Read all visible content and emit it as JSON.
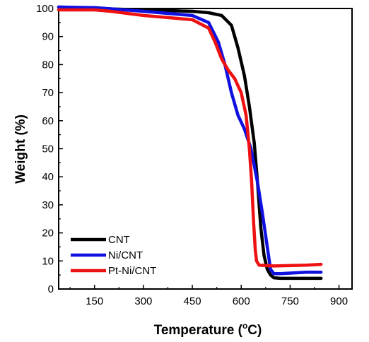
{
  "chart_data": {
    "type": "line",
    "title": "",
    "xlabel": "Temperature (°C)",
    "xlabel_parts": {
      "main": "Temperature (",
      "sup": "o",
      "unit": "C)"
    },
    "ylabel": "Weight (%)",
    "xlim": [
      40,
      940
    ],
    "ylim": [
      0,
      100
    ],
    "x_ticks": [
      150,
      300,
      450,
      600,
      750,
      900
    ],
    "y_ticks": [
      0,
      10,
      20,
      30,
      40,
      50,
      60,
      70,
      80,
      90,
      100
    ],
    "grid": false,
    "legend_position": "bottom-left",
    "series": [
      {
        "name": "CNT",
        "color": "#000000",
        "points": [
          [
            40,
            100.5
          ],
          [
            150,
            100
          ],
          [
            300,
            99.5
          ],
          [
            450,
            99
          ],
          [
            500,
            98.5
          ],
          [
            540,
            97.5
          ],
          [
            570,
            94
          ],
          [
            590,
            86
          ],
          [
            610,
            76
          ],
          [
            625,
            65
          ],
          [
            640,
            52
          ],
          [
            650,
            38
          ],
          [
            660,
            22
          ],
          [
            670,
            12
          ],
          [
            680,
            7
          ],
          [
            690,
            5
          ],
          [
            700,
            4
          ],
          [
            720,
            3.8
          ],
          [
            800,
            3.8
          ],
          [
            845,
            3.8
          ]
        ]
      },
      {
        "name": "Ni/CNT",
        "color": "#1010e0",
        "points": [
          [
            40,
            100.5
          ],
          [
            150,
            100.3
          ],
          [
            300,
            99
          ],
          [
            450,
            97.5
          ],
          [
            500,
            95
          ],
          [
            530,
            88
          ],
          [
            550,
            80
          ],
          [
            570,
            70
          ],
          [
            590,
            62
          ],
          [
            610,
            57
          ],
          [
            630,
            50
          ],
          [
            650,
            38
          ],
          [
            665,
            27
          ],
          [
            680,
            15
          ],
          [
            690,
            7
          ],
          [
            700,
            5.5
          ],
          [
            720,
            5.5
          ],
          [
            800,
            6
          ],
          [
            845,
            6
          ]
        ]
      },
      {
        "name": "Pt-Ni/CNT",
        "color": "#ee1111",
        "points": [
          [
            40,
            99.5
          ],
          [
            150,
            99.5
          ],
          [
            200,
            99
          ],
          [
            300,
            97.5
          ],
          [
            450,
            96
          ],
          [
            500,
            93
          ],
          [
            520,
            88
          ],
          [
            540,
            82
          ],
          [
            560,
            78
          ],
          [
            580,
            75
          ],
          [
            600,
            70
          ],
          [
            615,
            62
          ],
          [
            625,
            50
          ],
          [
            632,
            38
          ],
          [
            638,
            24
          ],
          [
            643,
            14
          ],
          [
            647,
            10
          ],
          [
            655,
            8.5
          ],
          [
            700,
            8.2
          ],
          [
            800,
            8.5
          ],
          [
            845,
            8.8
          ]
        ]
      }
    ]
  }
}
